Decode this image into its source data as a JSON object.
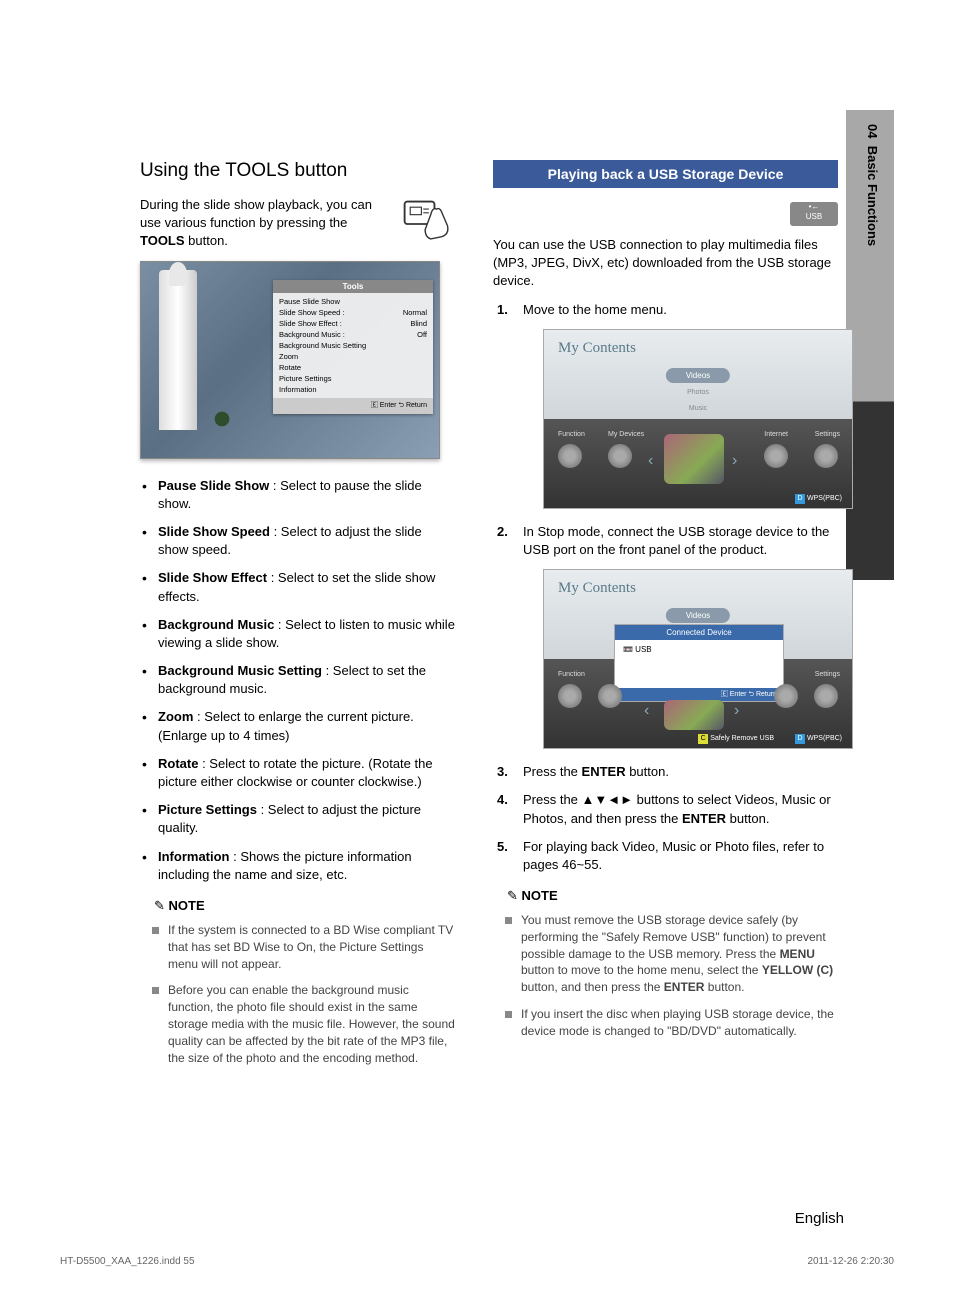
{
  "sideTab": {
    "chapter": "04",
    "section": "Basic Functions"
  },
  "left": {
    "title": "Using the TOOLS button",
    "intro_before": "During the slide show playback, you can use various function by pressing the ",
    "intro_bold": "TOOLS",
    "intro_after": " button.",
    "tvMenu": {
      "title": "Tools",
      "rows": [
        {
          "label": "Pause Slide Show",
          "value": ""
        },
        {
          "label": "Slide Show Speed    :",
          "value": "Normal"
        },
        {
          "label": "Slide Show Effect    :",
          "value": "Blind"
        },
        {
          "label": "Background Music    :",
          "value": "Off"
        },
        {
          "label": "Background Music Setting",
          "value": ""
        },
        {
          "label": "Zoom",
          "value": ""
        },
        {
          "label": "Rotate",
          "value": ""
        },
        {
          "label": "Picture Settings",
          "value": ""
        },
        {
          "label": "Information",
          "value": ""
        }
      ],
      "footer": "🄴 Enter    ⮌ Return"
    },
    "bullets": [
      {
        "bold": "Pause Slide Show",
        "text": " : Select to pause the slide show."
      },
      {
        "bold": "Slide Show Speed",
        "text": " : Select to adjust the slide show speed."
      },
      {
        "bold": "Slide Show Effect",
        "text": " : Select to set the slide show effects."
      },
      {
        "bold": "Background Music",
        "text": " : Select to listen to music while viewing a slide show."
      },
      {
        "bold": "Background Music Setting",
        "text": " : Select to set the background music."
      },
      {
        "bold": "Zoom",
        "text": " : Select to enlarge the current picture. (Enlarge up to 4 times)"
      },
      {
        "bold": "Rotate",
        "text": " : Select to rotate the picture. (Rotate the picture either clockwise or counter clockwise.)"
      },
      {
        "bold": "Picture Settings",
        "text": " : Select to adjust the picture quality."
      },
      {
        "bold": "Information",
        "text": " : Shows the picture information including the name and size, etc."
      }
    ],
    "noteHead": "NOTE",
    "notes": [
      "If the system is connected to a BD Wise compliant TV that has set BD Wise to On, the Picture Settings menu will not appear.",
      "Before you can enable the background music function, the photo file should exist in the same storage media with the music file. However, the sound quality can be affected by the bit rate of the MP3 file, the size of the photo and the encoding method."
    ]
  },
  "right": {
    "header": "Playing back a USB Storage Device",
    "usbBadge": "USB",
    "intro": "You can use the USB connection to play multimedia files (MP3, JPEG, DivX, etc) downloaded from the USB storage device.",
    "step1": "Move to the home menu.",
    "ui1": {
      "title": "My Contents",
      "pill": "Videos",
      "labels": {
        "photos": "Photos",
        "music": "Music",
        "function": "Function",
        "myDevices": "My Devices",
        "internet": "Internet",
        "settings": "Settings"
      },
      "footer": "WPS(PBC)"
    },
    "step2": "In Stop mode, connect the USB storage device to the USB port on the front panel of the product.",
    "ui2": {
      "title": "My Contents",
      "pill": "Videos",
      "dropHead": "Connected Device",
      "dropBody": "📼 USB",
      "dropFooter": "🄴 Enter   ⮌ Return",
      "function": "Function",
      "settings": "Settings",
      "safelyRemove": "Safely Remove USB",
      "wps": "WPS(PBC)"
    },
    "step3_before": "Press the ",
    "step3_bold": "ENTER",
    "step3_after": " button.",
    "step4_before": "Press the ▲▼◄► buttons to select Videos, Music or Photos, and then press the ",
    "step4_bold": "ENTER",
    "step4_after": " button.",
    "step5": "For playing back Video, Music or Photo files, refer to pages 46~55.",
    "noteHead": "NOTE",
    "notes": [
      {
        "parts": [
          "You must remove the USB storage device safely (by performing the \"Safely Remove USB\" function) to prevent possible damage to the USB memory. Press the ",
          "MENU",
          " button to move to the home menu, select the ",
          "YELLOW (C)",
          " button, and then press the ",
          "ENTER",
          " button."
        ]
      },
      {
        "parts": [
          "If you insert the disc when playing USB storage device, the device mode is changed to \"BD/DVD\" automatically."
        ]
      }
    ]
  },
  "english": "English",
  "footer": {
    "file": "HT-D5500_XAA_1226.indd   55",
    "date": "2011-12-26   2:20:30"
  }
}
